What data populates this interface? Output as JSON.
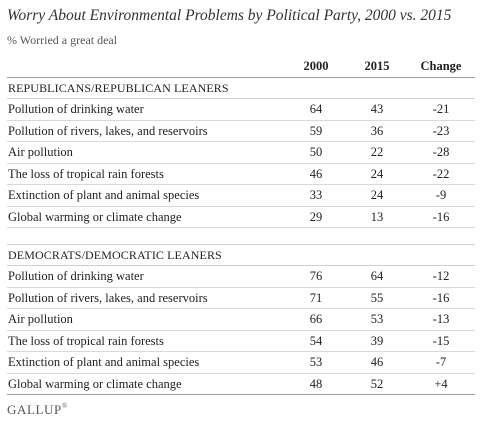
{
  "chart_data": {
    "type": "table",
    "title": "Worry About Environmental Problems by Political Party, 2000 vs. 2015",
    "subtitle": "% Worried a great deal",
    "columns": [
      "2000",
      "2015",
      "Change"
    ],
    "sections": [
      {
        "name": "REPUBLICANS/REPUBLICAN LEANERS",
        "rows": [
          {
            "label": "Pollution of drinking water",
            "y2000": "64",
            "y2015": "43",
            "change": "-21"
          },
          {
            "label": "Pollution of rivers, lakes, and reservoirs",
            "y2000": "59",
            "y2015": "36",
            "change": "-23"
          },
          {
            "label": "Air pollution",
            "y2000": "50",
            "y2015": "22",
            "change": "-28"
          },
          {
            "label": "The loss of tropical rain forests",
            "y2000": "46",
            "y2015": "24",
            "change": "-22"
          },
          {
            "label": "Extinction of plant and animal species",
            "y2000": "33",
            "y2015": "24",
            "change": "-9"
          },
          {
            "label": "Global warming or climate change",
            "y2000": "29",
            "y2015": "13",
            "change": "-16"
          }
        ]
      },
      {
        "name": "DEMOCRATS/DEMOCRATIC LEANERS",
        "rows": [
          {
            "label": "Pollution of drinking water",
            "y2000": "76",
            "y2015": "64",
            "change": "-12"
          },
          {
            "label": "Pollution of rivers, lakes, and reservoirs",
            "y2000": "71",
            "y2015": "55",
            "change": "-16"
          },
          {
            "label": "Air pollution",
            "y2000": "66",
            "y2015": "53",
            "change": "-13"
          },
          {
            "label": "The loss of tropical rain forests",
            "y2000": "54",
            "y2015": "39",
            "change": "-15"
          },
          {
            "label": "Extinction of plant and animal species",
            "y2000": "53",
            "y2015": "46",
            "change": "-7"
          },
          {
            "label": "Global warming or climate change",
            "y2000": "48",
            "y2015": "52",
            "change": "+4"
          }
        ]
      }
    ]
  },
  "logo": {
    "text": "GALLUP",
    "mark": "®"
  }
}
